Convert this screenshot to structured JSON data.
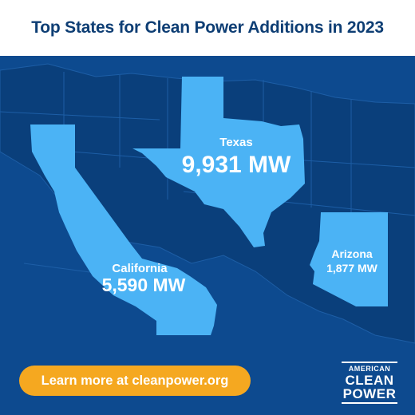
{
  "header": {
    "title": "Top States for Clean Power Additions in 2023"
  },
  "states": {
    "texas": {
      "name": "Texas",
      "value": "9,931 MW"
    },
    "california": {
      "name": "California",
      "value": "5,590 MW"
    },
    "arizona": {
      "name": "Arizona",
      "value": "1,877 MW"
    }
  },
  "cta": {
    "label": "Learn more at cleanpower.org"
  },
  "logo": {
    "line1": "AMERICAN",
    "line2": "CLEAN",
    "line3": "POWER"
  },
  "colors": {
    "title": "#0e3e74",
    "map_background": "#0d4a8f",
    "highlight_state": "#4bb3f5",
    "button": "#f5a820",
    "text_on_dark": "#ffffff"
  }
}
